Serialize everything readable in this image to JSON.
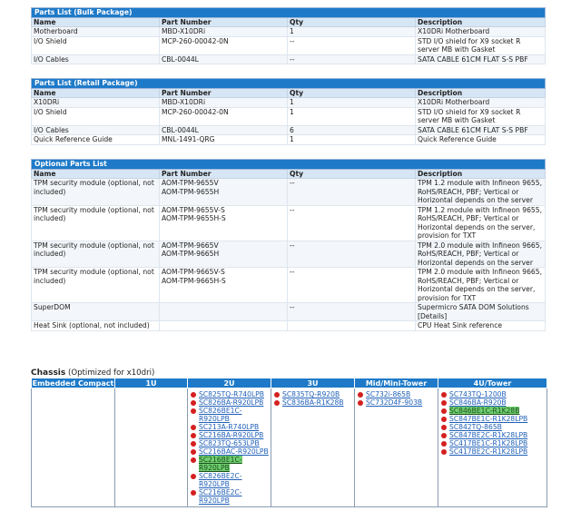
{
  "bulk": {
    "caption": "Parts List (Bulk Package)",
    "headers": [
      "Name",
      "Part Number",
      "Qty",
      "Description"
    ],
    "rows": [
      [
        "Motherboard",
        "MBD-X10DRi",
        "1",
        "X10DRi Motherboard"
      ],
      [
        "I/O Shield",
        "MCP-260-00042-0N",
        "--",
        "STD I/O shield for X9 socket R server MB with Gasket"
      ],
      [
        "I/O Cables",
        "CBL-0044L",
        "--",
        "SATA CABLE 61CM FLAT S-S PBF"
      ]
    ]
  },
  "retail": {
    "caption": "Parts List (Retail Package)",
    "headers": [
      "Name",
      "Part Number",
      "Qty",
      "Description"
    ],
    "rows": [
      [
        "X10DRi",
        "MBD-X10DRi",
        "1",
        "X10DRi Motherboard"
      ],
      [
        "I/O Shield",
        "MCP-260-00042-0N",
        "1",
        "STD I/O shield for X9 socket R server MB with Gasket"
      ],
      [
        "I/O Cables",
        "CBL-0044L",
        "6",
        "SATA CABLE 61CM FLAT S-S PBF"
      ],
      [
        "Quick Reference Guide",
        "MNL-1491-QRG",
        "1",
        "Quick Reference Guide"
      ]
    ]
  },
  "optional": {
    "caption": "Optional Parts List",
    "headers": [
      "Name",
      "Part Number",
      "Qty",
      "Description"
    ],
    "rows": [
      [
        "TPM security module (optional, not included)",
        "AOM-TPM-9655V\nAOM-TPM-9655H",
        "--",
        "TPM 1.2 module with Infineon 9655, RoHS/REACH, PBF; Vertical or Horizontal depends on the server"
      ],
      [
        "TPM security module (optional, not included)",
        "AOM-TPM-9655V-S\nAOM-TPM-9655H-S",
        "--",
        "TPM 1.2 module with Infineon 9655, RoHS/REACH, PBF; Vertical or Horizontal depends on the server, provision for TXT"
      ],
      [
        "TPM security module (optional, not included)",
        "AOM-TPM-9665V\nAOM-TPM-9665H",
        "--",
        "TPM 2.0 module with Infineon 9665, RoHS/REACH, PBF; Vertical or Horizontal depends on the server"
      ],
      [
        "TPM security module (optional, not included)",
        "AOM-TPM-9665V-S\nAOM-TPM-9665H-S",
        "--",
        "TPM 2.0 module with Infineon 9665, RoHS/REACH, PBF; Vertical or Horizontal depends on the server, provision for TXT"
      ],
      [
        "SuperDOM",
        "",
        "--",
        "Supermicro SATA DOM Solutions [Details]"
      ],
      [
        "Heat Sink (optional, not included)",
        "",
        "",
        "CPU Heat Sink reference"
      ]
    ]
  },
  "chassis": {
    "title": "Chassis",
    "subtitle": "(Optimized for x10dri)",
    "columns": [
      "Embedded Compact",
      "1U",
      "2U",
      "3U",
      "Mid/Mini-Tower",
      "4U/Tower"
    ],
    "models": {
      "2U": [
        {
          "name": "SC825TQ-R740LPB",
          "hl": false
        },
        {
          "name": "SC826BA-R920LPB",
          "hl": false
        },
        {
          "name": "SC826BE1C-R920LPB",
          "hl": false
        },
        {
          "name": "SC213A-R740LPB",
          "hl": false
        },
        {
          "name": "SC216BA-R920LPB",
          "hl": false
        },
        {
          "name": "SC823TQ-653LPB",
          "hl": false
        },
        {
          "name": "SC216BAC-R920LPB",
          "hl": false
        },
        {
          "name": "SC216BE1C-R920LPB",
          "hl": true
        },
        {
          "name": "SC826BE2C-R920LPB",
          "hl": false
        },
        {
          "name": "SC216BE2C-R920LPB",
          "hl": false
        }
      ],
      "3U": [
        {
          "name": "SC835TQ-R920B",
          "hl": false
        },
        {
          "name": "SC836BA-R1K28B",
          "hl": false
        }
      ],
      "Mid/Mini-Tower": [
        {
          "name": "SC732i-865B",
          "hl": false
        },
        {
          "name": "SC732D4F-903B",
          "hl": false
        }
      ],
      "4U/Tower": [
        {
          "name": "SC743TQ-1200B",
          "hl": false
        },
        {
          "name": "SC846BA-R920B",
          "hl": false
        },
        {
          "name": "SC846BE1C-R1K28B",
          "hl": true
        },
        {
          "name": "SC847BE1C-R1K28LPB",
          "hl": false
        },
        {
          "name": "SC842TQ-865B",
          "hl": false
        },
        {
          "name": "SC847BE2C-R1K28LPB",
          "hl": false
        },
        {
          "name": "SC417BE1C-R1K28LPB",
          "hl": false
        },
        {
          "name": "SC417BE2C-R1K28LPB",
          "hl": false
        }
      ]
    }
  }
}
